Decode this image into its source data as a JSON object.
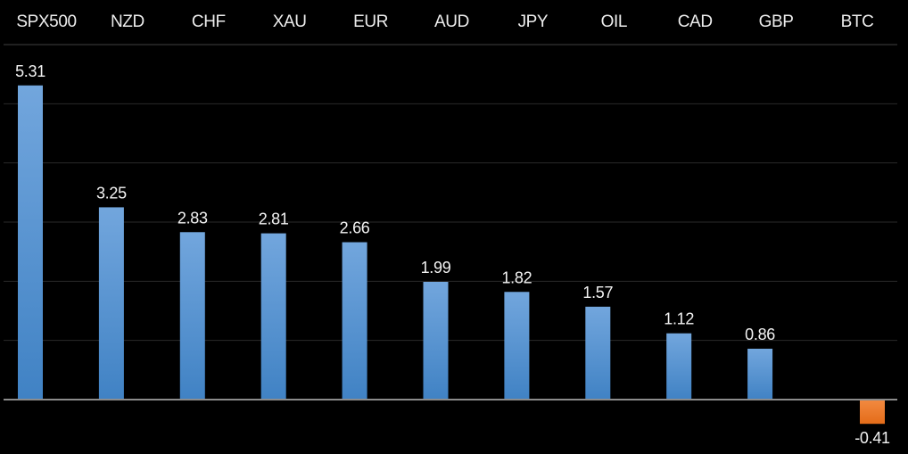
{
  "chart_data": {
    "type": "bar",
    "orientation": "vertical",
    "categories": [
      "SPX500",
      "NZD",
      "CHF",
      "XAU",
      "EUR",
      "AUD",
      "JPY",
      "OIL",
      "CAD",
      "GBP",
      "BTC"
    ],
    "values": [
      5.31,
      3.25,
      2.83,
      2.81,
      2.66,
      1.99,
      1.82,
      1.57,
      1.12,
      0.86,
      -0.41
    ],
    "value_label_decimals": 2,
    "ylim": [
      -1,
      6
    ],
    "gridline_interval": 1,
    "grid_on": true,
    "legend": null,
    "title": "",
    "xlabel": "",
    "ylabel": "",
    "colors": {
      "background": "#000000",
      "bar_positive_top": "#72A6DD",
      "bar_positive_bottom": "#4082C4",
      "bar_negative_top": "#F28A41",
      "bar_negative_bottom": "#E46C19",
      "gridline": "#2A2A2A",
      "header_line": "#414141",
      "zero_line": "#8C8C8C",
      "header_text": "#EDEDED",
      "value_text": "#F2F2F2"
    }
  }
}
